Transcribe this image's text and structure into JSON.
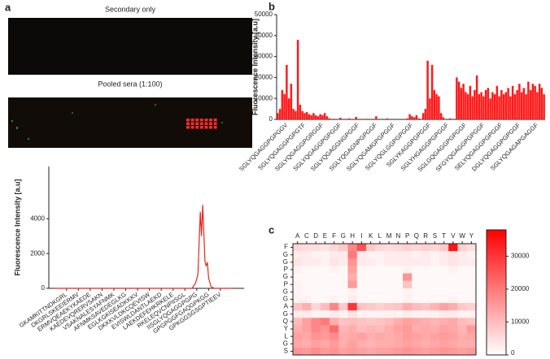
{
  "panels": [
    "a",
    "b",
    "c"
  ],
  "images": [
    {
      "title": "Secondary only"
    },
    {
      "title": "Pooled sera (1:100)"
    }
  ],
  "chart_data": [
    {
      "type": "line",
      "ylabel": "Fluorescence Intensity [a.u]",
      "color": "#e8261f",
      "x": [
        -1,
        0,
        1,
        2,
        3,
        4,
        5,
        6,
        7,
        8,
        9,
        10,
        10.6,
        10.9,
        11.1,
        11.3,
        11.4,
        11.5,
        11.6,
        11.7,
        11.8,
        11.9,
        12.0,
        12.2,
        12.5,
        13,
        14
      ],
      "values": [
        0,
        0,
        0,
        0,
        0,
        0,
        0,
        0,
        0,
        0,
        0,
        0,
        0,
        300,
        800,
        4400,
        3000,
        4800,
        3200,
        1500,
        1300,
        1500,
        600,
        100,
        0,
        0,
        0
      ],
      "xlim": [
        -1.5,
        15
      ],
      "ylim": [
        0,
        7000
      ],
      "yticks": [
        0,
        2000,
        4000
      ],
      "xticks": [
        {
          "value": 0,
          "label": "GKAMKITTNDKGRL"
        },
        {
          "value": 1,
          "label": "DKGRLSKEEIERMV"
        },
        {
          "value": 2,
          "label": "ERMVQEAEKYKAEDE"
        },
        {
          "value": 3,
          "label": "KAEDEVQRERVSAKN"
        },
        {
          "value": 4,
          "label": "VSAKNALESYAFNMK"
        },
        {
          "value": 5,
          "label": "AFNMKSAVEDEGLKG"
        },
        {
          "value": 6,
          "label": "EGLKGKISEADKKKV"
        },
        {
          "value": 7,
          "label": "DKKKVLDKCQEVISW"
        },
        {
          "value": 8,
          "label": "EVISWLDANTLAEKD"
        },
        {
          "value": 9,
          "label": "LAEKDEFEHKRKELE"
        },
        {
          "value": 10,
          "label": "RKELEQVCNPIISGL"
        },
        {
          "value": 11,
          "label": "IISGLYQGAGGPGPG"
        },
        {
          "value": 12,
          "label": "GPGPGGFGAQGPKGG"
        },
        {
          "value": 13,
          "label": "GPKGGSGSGPTIEEV"
        }
      ],
      "grid": false
    },
    {
      "type": "bar",
      "ylabel": "Fluorescence Intensity [a.u]",
      "color": "#ff1a1a",
      "categories": [
        null,
        null,
        null,
        null,
        "SGLYQGAGGPGPGGV",
        null,
        null,
        null,
        null,
        null,
        null,
        null,
        "SGLYQGAGGPGPGTF",
        null,
        null,
        null,
        null,
        null,
        null,
        null,
        "SGLYQGAGGPGRGGF",
        null,
        null,
        null,
        null,
        null,
        null,
        null,
        "SGLYQGAGGPGPGGF",
        null,
        null,
        null,
        null,
        null,
        null,
        null,
        "SGLYQGAGGNGPGGF",
        null,
        null,
        null,
        null,
        null,
        null,
        null,
        "SGLYQGAGNPGPGGF",
        null,
        null,
        null,
        null,
        null,
        null,
        null,
        "SGLYQGAMGPGPGGF",
        null,
        null,
        null,
        null,
        null,
        null,
        null,
        "SGLYQGLGGPGPGGF",
        null,
        null,
        null,
        null,
        null,
        null,
        null,
        "SGLYKAGGPGPGGF",
        null,
        null,
        null,
        null,
        null,
        null,
        null,
        "SGLYHGAGGPGPGGF",
        null,
        null,
        null,
        null,
        null,
        null,
        null,
        "SGLGQGAGGPGPGGF",
        null,
        null,
        null,
        null,
        null,
        null,
        null,
        "SFGYQGAGGPGPGGF",
        null,
        null,
        null,
        null,
        null,
        null,
        null,
        "SELYQGAGGPGPGGF",
        null,
        null,
        null,
        null,
        null,
        null,
        null,
        "DGLYQGAGGPGPGGF",
        null,
        null,
        null,
        null,
        null,
        null,
        null,
        "SGLYQGAGAPGAGGF",
        null,
        null,
        null
      ],
      "values": [
        3000,
        5000,
        14000,
        12000,
        26000,
        10000,
        17000,
        5000,
        4000,
        38000,
        7000,
        4000,
        3000,
        3500,
        2500,
        2000,
        3000,
        2000,
        1500,
        2500,
        2000,
        3000,
        1500,
        500,
        0,
        300,
        0,
        0,
        800,
        0,
        0,
        0,
        500,
        0,
        0,
        1200,
        0,
        0,
        0,
        0,
        300,
        0,
        0,
        0,
        1500,
        0,
        0,
        0,
        0,
        500,
        0,
        0,
        0,
        0,
        0,
        0,
        0,
        0,
        500,
        2500,
        1500,
        1000,
        2000,
        500,
        0,
        3000,
        5000,
        28000,
        10000,
        26000,
        14000,
        12000,
        11000,
        3000,
        1000,
        0,
        0,
        500,
        0,
        0,
        20000,
        18000,
        15000,
        17000,
        13000,
        12000,
        16000,
        11000,
        14000,
        21000,
        12000,
        13000,
        11000,
        14000,
        15000,
        10000,
        13000,
        12000,
        16000,
        11000,
        14000,
        12000,
        13000,
        15000,
        11000,
        16000,
        12000,
        14000,
        17000,
        13000,
        15000,
        12000,
        18000,
        14000,
        17000,
        16000,
        13000,
        17000,
        15000,
        12000
      ],
      "ylim": [
        0,
        50000
      ],
      "yticks": [
        0,
        10000,
        20000,
        30000,
        40000,
        50000
      ],
      "grid": false
    },
    {
      "type": "heatmap",
      "x_categories": [
        "A",
        "C",
        "D",
        "E",
        "F",
        "G",
        "H",
        "I",
        "K",
        "L",
        "M",
        "N",
        "P",
        "Q",
        "R",
        "S",
        "T",
        "V",
        "W",
        "Y"
      ],
      "y_categories": [
        "F",
        "G",
        "G",
        "P",
        "G",
        "P",
        "G",
        "G",
        "A",
        "G",
        "Q",
        "Y",
        "L",
        "G",
        "S"
      ],
      "values": [
        [
          6000,
          5000,
          5000,
          4000,
          6000,
          8000,
          18000,
          26000,
          8000,
          6000,
          5000,
          6000,
          7000,
          6000,
          7000,
          6000,
          8000,
          35000,
          7000,
          5000
        ],
        [
          3000,
          3000,
          2000,
          2000,
          3000,
          3000,
          20000,
          3000,
          2000,
          2000,
          3000,
          3000,
          3000,
          2000,
          3000,
          2000,
          3000,
          4000,
          3000,
          2000
        ],
        [
          4000,
          3000,
          3000,
          2000,
          4000,
          3000,
          16000,
          3000,
          3000,
          2000,
          3000,
          3000,
          3000,
          3000,
          3000,
          2000,
          3000,
          4000,
          3000,
          3000
        ],
        [
          2000,
          1000,
          1000,
          1000,
          2000,
          1000,
          14000,
          1000,
          1000,
          1000,
          1000,
          1000,
          2000,
          1000,
          1000,
          1000,
          1000,
          2000,
          1000,
          1000
        ],
        [
          1000,
          1000,
          1000,
          1000,
          1000,
          1000,
          12000,
          1000,
          1000,
          1000,
          1000,
          1000,
          16000,
          1000,
          1000,
          1000,
          1000,
          1000,
          1000,
          1000
        ],
        [
          2000,
          1000,
          1000,
          1000,
          1000,
          1000,
          15000,
          1000,
          1000,
          1000,
          1000,
          1000,
          9000,
          1000,
          1000,
          1000,
          1000,
          1000,
          1000,
          1000
        ],
        [
          2000,
          1000,
          1000,
          1000,
          1000,
          1000,
          2000,
          1000,
          1000,
          1000,
          1000,
          1000,
          2000,
          1000,
          1000,
          1000,
          1000,
          1000,
          1000,
          1000
        ],
        [
          2000,
          2000,
          1000,
          1000,
          2000,
          1000,
          3000,
          1000,
          1000,
          1000,
          1000,
          1000,
          2000,
          1000,
          1000,
          1000,
          1000,
          2000,
          1000,
          1000
        ],
        [
          9000,
          12000,
          6000,
          10000,
          18000,
          8000,
          30000,
          9000,
          8000,
          7000,
          8000,
          9000,
          12000,
          10000,
          9000,
          11000,
          14000,
          12000,
          8000,
          7000
        ],
        [
          3000,
          3000,
          2000,
          2000,
          3000,
          2000,
          4000,
          2000,
          2000,
          2000,
          2000,
          2000,
          3000,
          2000,
          2000,
          2000,
          3000,
          3000,
          2000,
          2000
        ],
        [
          10000,
          14000,
          18000,
          20000,
          12000,
          9000,
          10000,
          9000,
          8000,
          9000,
          10000,
          12000,
          14000,
          13000,
          12000,
          11000,
          12000,
          13000,
          10000,
          9000
        ],
        [
          12000,
          14000,
          18000,
          16000,
          22000,
          11000,
          12000,
          10000,
          11000,
          10000,
          12000,
          14000,
          15000,
          12000,
          13000,
          12000,
          14000,
          13000,
          11000,
          15000
        ],
        [
          14000,
          13000,
          16000,
          15000,
          17000,
          12000,
          13000,
          14000,
          12000,
          13000,
          12000,
          13000,
          15000,
          14000,
          13000,
          14000,
          15000,
          14000,
          12000,
          13000
        ],
        [
          13000,
          12000,
          14000,
          13000,
          15000,
          12000,
          14000,
          12000,
          11000,
          12000,
          12000,
          13000,
          14000,
          13000,
          12000,
          13000,
          14000,
          13000,
          12000,
          12000
        ],
        [
          16000,
          15000,
          17000,
          15000,
          16000,
          14000,
          15000,
          14000,
          13000,
          14000,
          14000,
          15000,
          16000,
          15000,
          14000,
          15000,
          16000,
          15000,
          14000,
          15000
        ]
      ],
      "clim": [
        0,
        38000
      ],
      "cticks": [
        0,
        10000,
        20000,
        30000
      ],
      "colors": [
        "#ffffff",
        "#ff0000"
      ]
    }
  ]
}
